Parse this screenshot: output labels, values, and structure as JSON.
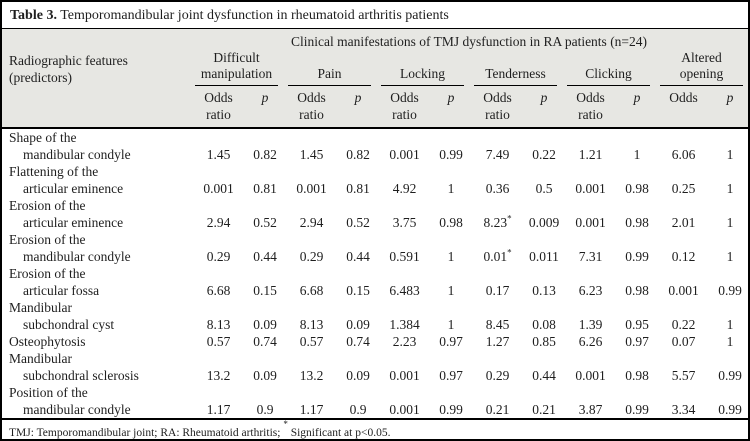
{
  "title": {
    "number": "Table 3.",
    "caption": "Temporomandibular joint dysfunction in rheumatoid arthritis patients"
  },
  "header": {
    "span_header": "Clinical manifestations of TMJ dysfunction in RA patients (n=24)",
    "row_header_line1": "Radiographic features",
    "row_header_line2": "(predictors)",
    "groups": [
      {
        "name": "Difficult manipulation",
        "odds_lines": [
          "Odds",
          "ratio"
        ],
        "p_label": "p"
      },
      {
        "name": "Pain",
        "odds_lines": [
          "Odds",
          "ratio"
        ],
        "p_label": "p"
      },
      {
        "name": "Locking",
        "odds_lines": [
          "Odds",
          "ratio"
        ],
        "p_label": "p"
      },
      {
        "name": "Tenderness",
        "odds_lines": [
          "Odds",
          "ratio"
        ],
        "p_label": "p"
      },
      {
        "name": "Clicking",
        "odds_lines": [
          "Odds",
          "ratio"
        ],
        "p_label": "p"
      },
      {
        "name": "Altered opening",
        "odds_lines": [
          "Odds"
        ],
        "p_label": "p"
      }
    ]
  },
  "rows": [
    {
      "label_lines": [
        "Shape of the",
        "mandibular condyle"
      ],
      "values": [
        "1.45",
        "0.82",
        "1.45",
        "0.82",
        "0.001",
        "0.99",
        "7.49",
        "0.22",
        "1.21",
        "1",
        "6.06",
        "1"
      ]
    },
    {
      "label_lines": [
        "Flattening of the",
        "articular eminence"
      ],
      "values": [
        "0.001",
        "0.81",
        "0.001",
        "0.81",
        "4.92",
        "1",
        "0.36",
        "0.5",
        "0.001",
        "0.98",
        "0.25",
        "1"
      ]
    },
    {
      "label_lines": [
        "Erosion of the",
        "articular eminence"
      ],
      "values": [
        "2.94",
        "0.52",
        "2.94",
        "0.52",
        "3.75",
        "0.98",
        "8.23*",
        "0.009",
        "0.001",
        "0.98",
        "2.01",
        "1"
      ]
    },
    {
      "label_lines": [
        "Erosion of the",
        "mandibular condyle"
      ],
      "values": [
        "0.29",
        "0.44",
        "0.29",
        "0.44",
        "0.591",
        "1",
        "0.01*",
        "0.011",
        "7.31",
        "0.99",
        "0.12",
        "1"
      ]
    },
    {
      "label_lines": [
        "Erosion of the",
        "articular fossa"
      ],
      "values": [
        "6.68",
        "0.15",
        "6.68",
        "0.15",
        "6.483",
        "1",
        "0.17",
        "0.13",
        "6.23",
        "0.98",
        "0.001",
        "0.99"
      ]
    },
    {
      "label_lines": [
        "Mandibular",
        "subchondral cyst"
      ],
      "values": [
        "8.13",
        "0.09",
        "8.13",
        "0.09",
        "1.384",
        "1",
        "8.45",
        "0.08",
        "1.39",
        "0.95",
        "0.22",
        "1"
      ]
    },
    {
      "label_lines": [
        "Osteophytosis"
      ],
      "values": [
        "0.57",
        "0.74",
        "0.57",
        "0.74",
        "2.23",
        "0.97",
        "1.27",
        "0.85",
        "6.26",
        "0.97",
        "0.07",
        "1"
      ]
    },
    {
      "label_lines": [
        "Mandibular",
        "subchondral sclerosis"
      ],
      "values": [
        "13.2",
        "0.09",
        "13.2",
        "0.09",
        "0.001",
        "0.97",
        "0.29",
        "0.44",
        "0.001",
        "0.98",
        "5.57",
        "0.99"
      ]
    },
    {
      "label_lines": [
        "Position of the",
        "mandibular condyle"
      ],
      "values": [
        "1.17",
        "0.9",
        "1.17",
        "0.9",
        "0.001",
        "0.99",
        "0.21",
        "0.21",
        "3.87",
        "0.99",
        "3.34",
        "0.99"
      ]
    }
  ],
  "footnote": {
    "part1": "TMJ: Temporomandibular joint; RA: Rheumatoid arthritis; ",
    "star": "*",
    "part2": " Significant at p<0.05."
  },
  "colors": {
    "header_background": "#e7e7e3",
    "border": "#000000",
    "text": "#1e1e1e"
  }
}
